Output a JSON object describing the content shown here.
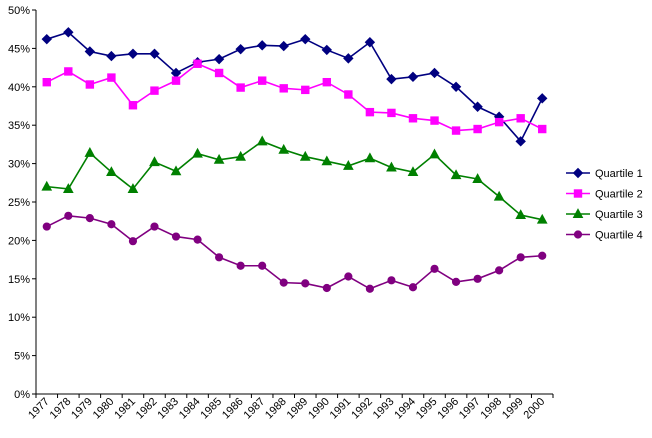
{
  "chart_data": {
    "type": "line",
    "title": "",
    "xlabel": "",
    "ylabel": "",
    "x": [
      "1977",
      "1978",
      "1979",
      "1980",
      "1981",
      "1982",
      "1983",
      "1984",
      "1985",
      "1986",
      "1987",
      "1988",
      "1989",
      "1990",
      "1991",
      "1992",
      "1993",
      "1994",
      "1995",
      "1996",
      "1997",
      "1998",
      "1999",
      "2000"
    ],
    "ylim": [
      0,
      50
    ],
    "yticks": [
      "0%",
      "5%",
      "10%",
      "15%",
      "20%",
      "25%",
      "30%",
      "35%",
      "40%",
      "45%",
      "50%"
    ],
    "grid": false,
    "legend_position": "right",
    "series": [
      {
        "name": "Quartile 1",
        "color": "#000080",
        "marker": "diamond",
        "values": [
          46.2,
          47.1,
          44.6,
          44.0,
          44.3,
          44.3,
          41.8,
          43.2,
          43.6,
          44.9,
          45.4,
          45.3,
          46.2,
          44.8,
          43.7,
          45.8,
          41.0,
          41.3,
          41.8,
          40.0,
          37.4,
          36.1,
          32.9,
          38.5
        ]
      },
      {
        "name": "Quartile 2",
        "color": "#FF00FF",
        "marker": "square",
        "values": [
          40.6,
          42.0,
          40.3,
          41.2,
          37.6,
          39.5,
          40.8,
          43.0,
          41.8,
          39.9,
          40.8,
          39.8,
          39.6,
          40.6,
          39.0,
          36.7,
          36.6,
          35.9,
          35.6,
          34.3,
          34.5,
          35.4,
          35.9,
          34.5
        ]
      },
      {
        "name": "Quartile 3",
        "color": "#008000",
        "marker": "triangle",
        "values": [
          27.0,
          26.7,
          31.4,
          28.9,
          26.7,
          30.2,
          29.0,
          31.3,
          30.5,
          30.9,
          32.9,
          31.8,
          30.9,
          30.3,
          29.7,
          30.7,
          29.5,
          28.9,
          31.2,
          28.5,
          28.0,
          25.7,
          23.3,
          22.7
        ]
      },
      {
        "name": "Quartile 4",
        "color": "#800080",
        "marker": "circle",
        "values": [
          21.8,
          23.2,
          22.9,
          22.1,
          19.9,
          21.8,
          20.5,
          20.1,
          17.8,
          16.7,
          16.7,
          14.5,
          14.4,
          13.8,
          15.3,
          13.7,
          14.8,
          13.9,
          16.3,
          14.6,
          15.0,
          16.1,
          17.8,
          18.0
        ]
      }
    ]
  }
}
